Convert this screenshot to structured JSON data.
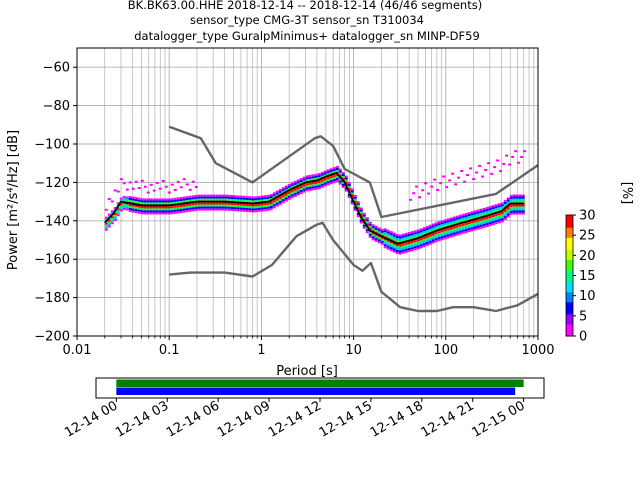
{
  "chart_data": {
    "type": "heatmap",
    "title_lines": [
      "BK.BK63.00.HHE   2018-12-14 -- 2018-12-14  (46/46 segments)",
      "sensor_type CMG-3T sensor_sn T310034",
      "datalogger_type GuralpMinimus+ datalogger_sn MINP-DF59"
    ],
    "xlabel": "Period [s]",
    "ylabel": "Power [m²/s⁴/Hz] [dB]",
    "xscale": "log",
    "xlim": [
      0.01,
      1000
    ],
    "ylim": [
      -200,
      -50
    ],
    "grid": true,
    "xtick_labels": [
      "0.01",
      "0.1",
      "1",
      "10",
      "100",
      "1000"
    ],
    "ytick_values": [
      -200,
      -180,
      -160,
      -140,
      -120,
      -100,
      -80,
      -60
    ],
    "ytick_labels": [
      "−200",
      "−180",
      "−160",
      "−140",
      "−120",
      "−100",
      "−80",
      "−60"
    ],
    "colorbar": {
      "label": "[%]",
      "range": [
        0,
        30
      ],
      "tick_labels": [
        "0",
        "5",
        "10",
        "15",
        "20",
        "25",
        "30"
      ],
      "tick_values": [
        0,
        5,
        10,
        15,
        20,
        25,
        30
      ]
    },
    "series": [
      {
        "role": "noise-model-high",
        "color": "#666666",
        "points": [
          [
            0.1,
            -91
          ],
          [
            0.22,
            -97
          ],
          [
            0.32,
            -110
          ],
          [
            0.8,
            -120
          ],
          [
            3.8,
            -97
          ],
          [
            4.4,
            -96
          ],
          [
            6,
            -101
          ],
          [
            8,
            -113
          ],
          [
            15,
            -120
          ],
          [
            20,
            -138
          ],
          [
            350,
            -126
          ],
          [
            1000,
            -111
          ]
        ]
      },
      {
        "role": "noise-model-low",
        "color": "#666666",
        "points": [
          [
            0.1,
            -168
          ],
          [
            0.17,
            -167
          ],
          [
            0.4,
            -167
          ],
          [
            0.8,
            -169
          ],
          [
            1.3,
            -163
          ],
          [
            2.4,
            -148
          ],
          [
            4.0,
            -142
          ],
          [
            4.6,
            -141
          ],
          [
            6,
            -150
          ],
          [
            10,
            -163
          ],
          [
            12.5,
            -166
          ],
          [
            15.4,
            -162
          ],
          [
            20,
            -177
          ],
          [
            32,
            -185
          ],
          [
            50,
            -187
          ],
          [
            80,
            -187
          ],
          [
            120,
            -185
          ],
          [
            200,
            -185
          ],
          [
            350,
            -187
          ],
          [
            600,
            -184
          ],
          [
            1000,
            -178
          ]
        ]
      },
      {
        "role": "mode",
        "color": "#000000",
        "points": [
          [
            0.02,
            -141
          ],
          [
            0.025,
            -136
          ],
          [
            0.03,
            -130
          ],
          [
            0.05,
            -132
          ],
          [
            0.1,
            -132
          ],
          [
            0.2,
            -130
          ],
          [
            0.4,
            -130
          ],
          [
            0.8,
            -131
          ],
          [
            1.2,
            -130
          ],
          [
            2,
            -124
          ],
          [
            3,
            -120
          ],
          [
            4,
            -119
          ],
          [
            5,
            -117
          ],
          [
            6.5,
            -115
          ],
          [
            8,
            -120
          ],
          [
            10,
            -130
          ],
          [
            12,
            -138
          ],
          [
            15,
            -145
          ],
          [
            20,
            -148
          ],
          [
            30,
            -152
          ],
          [
            50,
            -149
          ],
          [
            80,
            -145
          ],
          [
            150,
            -141
          ],
          [
            250,
            -138
          ],
          [
            400,
            -135
          ],
          [
            500,
            -131
          ],
          [
            700,
            -131
          ]
        ]
      }
    ],
    "probability_colors": {
      "low": "#ff00ff",
      "mid_low": "#0000ff",
      "mid": "#00c0ff",
      "mid_high": "#00ff40",
      "high": "#ffff00",
      "max": "#ff0000"
    },
    "time_axis": {
      "tick_labels": [
        "12-14 00",
        "12-14 03",
        "12-14 06",
        "12-14 09",
        "12-14 12",
        "12-14 15",
        "12-14 18",
        "12-14 21",
        "12-15 00"
      ],
      "tick_hours": [
        0,
        3,
        6,
        9,
        12,
        15,
        18,
        21,
        24
      ],
      "range_hours": [
        -1.2,
        25.2
      ],
      "bars": [
        {
          "name": "data-coverage",
          "color": "#008000",
          "start_hours": 0,
          "end_hours": 24
        },
        {
          "name": "psd-segments",
          "color": "#0000ff",
          "start_hours": 0,
          "end_hours": 23.5
        }
      ]
    }
  }
}
